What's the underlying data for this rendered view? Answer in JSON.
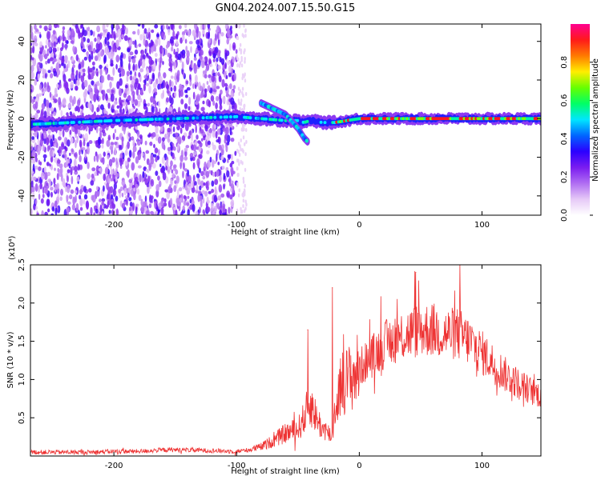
{
  "figure": {
    "title": "GN04.2024.007.15.50.G15"
  },
  "chart_data": [
    {
      "type": "heatmap",
      "subtype": "spectrogram",
      "xlabel": "Height of straight line (km)",
      "ylabel": "Frequency (Hz)",
      "xlim": [
        -268,
        148
      ],
      "ylim": [
        -50,
        49
      ],
      "xticks": [
        -200,
        -100,
        0,
        100
      ],
      "xtick_labels": [
        "-200",
        "-100",
        "0",
        "100"
      ],
      "yticks": [
        -40,
        -20,
        0,
        20,
        40
      ],
      "ytick_labels": [
        "-40",
        "-20",
        "0",
        "20",
        "40"
      ],
      "colorbar": {
        "label": "Normalized spectral amplitude",
        "range": [
          0,
          1
        ],
        "ticks": [
          0.0,
          0.2,
          0.4,
          0.6,
          0.8
        ],
        "tick_labels": [
          "0.0",
          "0.2",
          "0.4",
          "0.6",
          "0.8"
        ],
        "colormap": [
          "#ffffff",
          "#e6c9f7",
          "#b06ef2",
          "#7a1cf0",
          "#2b00ff",
          "#0066ff",
          "#00e6ff",
          "#00ff66",
          "#66ff00",
          "#ffee00",
          "#ff7a00",
          "#ff1a1a",
          "#ff0090"
        ]
      },
      "noise_region_x": [
        -268,
        -100
      ],
      "main_track": {
        "x": [
          -268,
          -200,
          -150,
          -100,
          -80,
          -60,
          -50,
          -45,
          -40,
          -30,
          -20,
          0,
          40,
          80,
          120,
          148
        ],
        "y": [
          -3,
          -1,
          0,
          1,
          0,
          -1,
          -1,
          -2,
          -1,
          -2,
          -2,
          0,
          0,
          0,
          0,
          0
        ]
      },
      "fading_branch": {
        "x": [
          -80,
          -70,
          -60,
          -50,
          -45,
          -42
        ],
        "y": [
          8,
          5,
          2,
          -5,
          -10,
          -12
        ]
      },
      "strong_segment_x": [
        -20,
        148
      ]
    },
    {
      "type": "line",
      "xlabel": "Height of straight line (km)",
      "ylabel": "SNR (10 * v/v)",
      "y_scale_label": "(x10⁴)",
      "xlim": [
        -268,
        148
      ],
      "ylim": [
        0,
        2.5
      ],
      "xticks": [
        -200,
        -100,
        0,
        100
      ],
      "xtick_labels": [
        "-200",
        "-100",
        "0",
        "100"
      ],
      "yticks": [
        0.5,
        1.0,
        1.5,
        2.0,
        2.5
      ],
      "ytick_labels": [
        "0.5",
        "1.0",
        "1.5",
        "2.0",
        "2.5"
      ],
      "color": "#ee3333",
      "series": [
        {
          "values_x": [
            -268,
            -250,
            -220,
            -200,
            -180,
            -160,
            -140,
            -120,
            -100,
            -90,
            -80,
            -70,
            -60,
            -50,
            -45,
            -40,
            -35,
            -30,
            -25,
            -22,
            -20,
            -15,
            -10,
            -5,
            0,
            10,
            20,
            30,
            40,
            50,
            60,
            70,
            80,
            90,
            100,
            110,
            120,
            130,
            140,
            148
          ],
          "values_y": [
            0.05,
            0.05,
            0.05,
            0.06,
            0.06,
            0.08,
            0.08,
            0.07,
            0.06,
            0.08,
            0.12,
            0.2,
            0.3,
            0.35,
            0.5,
            0.7,
            0.5,
            0.35,
            0.3,
            0.25,
            0.6,
            0.95,
            1.0,
            1.05,
            1.15,
            1.3,
            1.45,
            1.55,
            1.6,
            1.65,
            1.65,
            1.6,
            1.6,
            1.5,
            1.35,
            1.2,
            1.05,
            0.95,
            0.85,
            0.8
          ]
        }
      ],
      "peaks": [
        {
          "x": -42,
          "y": 1.65
        },
        {
          "x": -22,
          "y": 2.2
        },
        {
          "x": 46,
          "y": 2.4
        },
        {
          "x": 82,
          "y": 2.5
        }
      ]
    }
  ]
}
